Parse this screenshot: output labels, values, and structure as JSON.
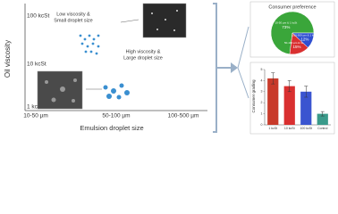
{
  "diagram": {
    "y_axis_title": "Oil viscosity",
    "x_axis_title": "Emulsion droplet size",
    "y_levels": [
      "100 kcSt",
      "10 kcSt",
      "1 kcSt"
    ],
    "x_levels": [
      "10-50 µm",
      "50-100 µm",
      "100-500 µm"
    ],
    "annotation_low": [
      "Low viscosity &",
      "Small droplet size"
    ],
    "annotation_high": [
      "High viscosity &",
      "Large droplet size"
    ]
  },
  "chart_data": [
    {
      "type": "pie",
      "title": "Consumer preference",
      "categories": [
        "10-50 µm & 1 kcSt",
        "50-100 µm & 10 kcSt",
        "100-500 µm & 1 kcSt"
      ],
      "values": [
        73,
        15,
        12
      ],
      "value_labels": [
        "73%",
        "15%",
        "12%"
      ],
      "colors": [
        "#3aa63a",
        "#d93030",
        "#2f4fd0"
      ]
    },
    {
      "type": "bar",
      "y_label": "Consumer grading",
      "categories": [
        "1 kcSt",
        "10 kcSt",
        "100 kcSt",
        "Control"
      ],
      "values": [
        4.2,
        3.5,
        3.0,
        1.0
      ],
      "errors": [
        0.5,
        0.5,
        0.5,
        0.2
      ],
      "colors": [
        "#c83a2a",
        "#d93030",
        "#3a55d0",
        "#3a9a8a"
      ],
      "ylim": [
        0,
        5
      ],
      "yticks": [
        0,
        1,
        2,
        3,
        4,
        5
      ]
    }
  ]
}
